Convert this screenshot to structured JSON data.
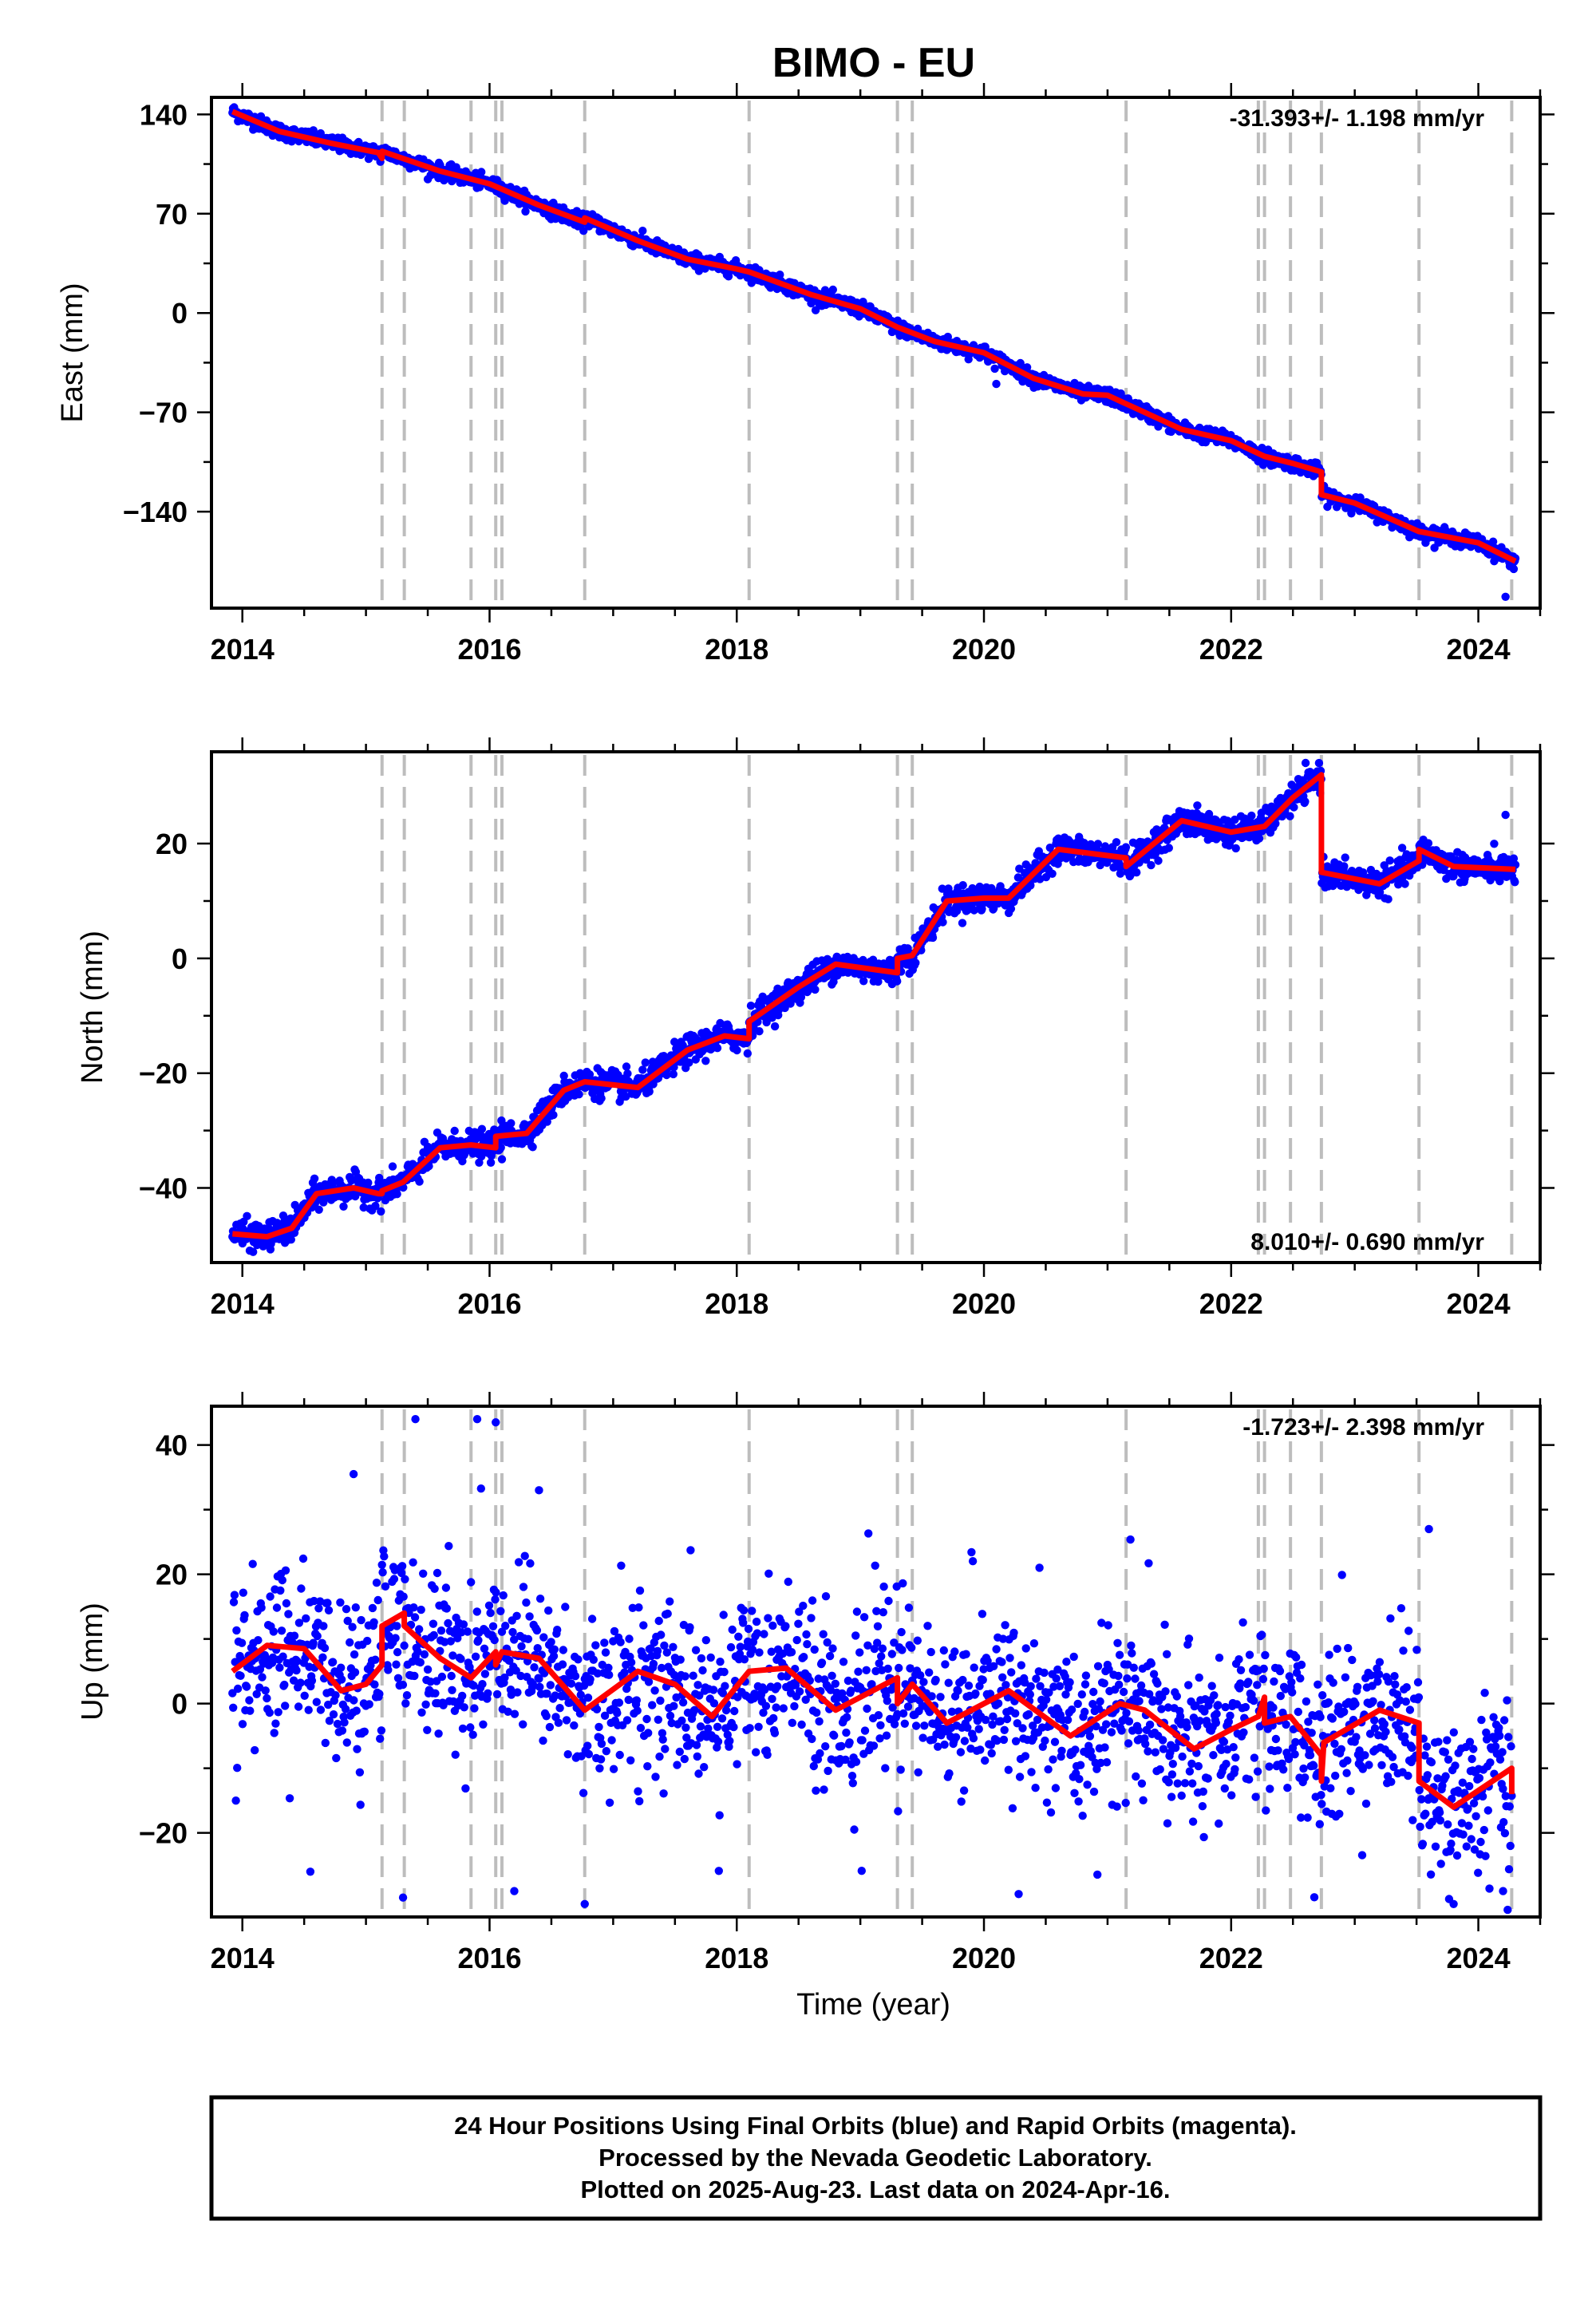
{
  "title": "BIMO - EU",
  "footer": {
    "line1": "24 Hour Positions Using Final Orbits (blue) and Rapid Orbits (magenta).",
    "line2": "Processed by the Nevada Geodetic Laboratory.",
    "line3": "Plotted on 2025-Aug-23. Last data on 2024-Apr-16."
  },
  "colors": {
    "final_orbit_points": "#0000ff",
    "model_fit": "#ff0000",
    "event_lines": "#bdbdbd"
  },
  "chart_data": [
    {
      "type": "scatter",
      "name": "east",
      "ylabel": "East (mm)",
      "xlabel": "",
      "xlim": [
        2013.75,
        2024.5
      ],
      "ylim": [
        -208,
        152
      ],
      "xticks": [
        2014,
        2016,
        2018,
        2020,
        2022,
        2024
      ],
      "yticks": [
        140,
        70,
        0,
        -70,
        -140
      ],
      "ytick_labels": [
        "140",
        "70",
        "0",
        "−70",
        "−140"
      ],
      "rate_label": "-31.393+/- 1.198 mm/yr",
      "rate_placement": "top-right",
      "grid": false,
      "events": [
        2015.13,
        2015.31,
        2015.85,
        2016.05,
        2016.1,
        2016.77,
        2018.1,
        2019.3,
        2019.42,
        2021.15,
        2022.22,
        2022.27,
        2022.48,
        2022.73,
        2023.52,
        2024.27
      ],
      "model": [
        [
          2013.92,
          142
        ],
        [
          2014.3,
          128
        ],
        [
          2014.7,
          120
        ],
        [
          2015.1,
          113
        ],
        [
          2015.13,
          109
        ],
        [
          2015.13,
          114
        ],
        [
          2015.6,
          100
        ],
        [
          2016.0,
          91
        ],
        [
          2016.4,
          76
        ],
        [
          2016.77,
          64
        ],
        [
          2016.77,
          67
        ],
        [
          2017.2,
          51
        ],
        [
          2017.6,
          38
        ],
        [
          2018.0,
          31
        ],
        [
          2018.1,
          29
        ],
        [
          2018.6,
          13
        ],
        [
          2019.0,
          3
        ],
        [
          2019.3,
          -10
        ],
        [
          2019.6,
          -20
        ],
        [
          2020.0,
          -28
        ],
        [
          2020.4,
          -46
        ],
        [
          2020.8,
          -57
        ],
        [
          2021.0,
          -58
        ],
        [
          2021.15,
          -64
        ],
        [
          2021.6,
          -82
        ],
        [
          2022.0,
          -90
        ],
        [
          2022.27,
          -101
        ],
        [
          2022.5,
          -106
        ],
        [
          2022.73,
          -112
        ],
        [
          2022.73,
          -128
        ],
        [
          2023.0,
          -134
        ],
        [
          2023.52,
          -154
        ],
        [
          2024.0,
          -162
        ],
        [
          2024.3,
          -175
        ]
      ],
      "noise_sd": 2.5,
      "outliers": [
        [
          2024.22,
          -200
        ],
        [
          2019.7,
          -26
        ],
        [
          2020.1,
          -50
        ]
      ]
    },
    {
      "type": "scatter",
      "name": "north",
      "ylabel": "North (mm)",
      "xlabel": "",
      "xlim": [
        2013.75,
        2024.5
      ],
      "ylim": [
        -53,
        36
      ],
      "xticks": [
        2014,
        2016,
        2018,
        2020,
        2022,
        2024
      ],
      "yticks": [
        20,
        0,
        -20,
        -40
      ],
      "ytick_labels": [
        "20",
        "0",
        "−20",
        "−40"
      ],
      "rate_label": "8.010+/- 0.690 mm/yr",
      "rate_placement": "bottom-right",
      "grid": false,
      "events": [
        2015.13,
        2015.31,
        2015.85,
        2016.05,
        2016.1,
        2016.77,
        2018.1,
        2019.3,
        2019.42,
        2021.15,
        2022.22,
        2022.27,
        2022.48,
        2022.73,
        2023.52,
        2024.27
      ],
      "model": [
        [
          2013.92,
          -48
        ],
        [
          2014.2,
          -48.5
        ],
        [
          2014.4,
          -47
        ],
        [
          2014.6,
          -41
        ],
        [
          2014.9,
          -40
        ],
        [
          2015.1,
          -41
        ],
        [
          2015.13,
          -41
        ],
        [
          2015.13,
          -40.5
        ],
        [
          2015.3,
          -39
        ],
        [
          2015.6,
          -33
        ],
        [
          2015.85,
          -32.5
        ],
        [
          2016.05,
          -33
        ],
        [
          2016.05,
          -31
        ],
        [
          2016.3,
          -30.5
        ],
        [
          2016.6,
          -23
        ],
        [
          2016.77,
          -21.5
        ],
        [
          2017.2,
          -22.5
        ],
        [
          2017.6,
          -16
        ],
        [
          2017.9,
          -13.5
        ],
        [
          2018.1,
          -14
        ],
        [
          2018.1,
          -11
        ],
        [
          2018.5,
          -5
        ],
        [
          2018.8,
          -1
        ],
        [
          2019.3,
          -2.5
        ],
        [
          2019.3,
          0
        ],
        [
          2019.42,
          0.5
        ],
        [
          2019.7,
          10
        ],
        [
          2020.0,
          10.5
        ],
        [
          2020.2,
          10.5
        ],
        [
          2020.6,
          19
        ],
        [
          2021.15,
          17.5
        ],
        [
          2021.15,
          16
        ],
        [
          2021.6,
          24
        ],
        [
          2022.0,
          22
        ],
        [
          2022.27,
          23
        ],
        [
          2022.5,
          28
        ],
        [
          2022.73,
          32
        ],
        [
          2022.73,
          15
        ],
        [
          2023.2,
          13
        ],
        [
          2023.52,
          17
        ],
        [
          2023.52,
          19
        ],
        [
          2023.8,
          16
        ],
        [
          2024.3,
          15.5
        ]
      ],
      "noise_sd": 1.2,
      "outliers": [
        [
          2024.22,
          25
        ],
        [
          2016.1,
          -35
        ]
      ]
    },
    {
      "type": "scatter",
      "name": "up",
      "ylabel": "Up (mm)",
      "xlabel": "Time (year)",
      "xlim": [
        2013.75,
        2024.5
      ],
      "ylim": [
        -33,
        46
      ],
      "xticks": [
        2014,
        2016,
        2018,
        2020,
        2022,
        2024
      ],
      "yticks": [
        40,
        20,
        0,
        -20
      ],
      "ytick_labels": [
        "40",
        "20",
        "0",
        "−20"
      ],
      "rate_label": "-1.723+/- 2.398 mm/yr",
      "rate_placement": "top-right",
      "grid": false,
      "events": [
        2015.13,
        2015.31,
        2015.85,
        2016.05,
        2016.1,
        2016.77,
        2018.1,
        2019.3,
        2019.42,
        2021.15,
        2022.22,
        2022.27,
        2022.48,
        2022.73,
        2023.52,
        2024.27
      ],
      "model": [
        [
          2013.92,
          5
        ],
        [
          2014.2,
          9
        ],
        [
          2014.5,
          8.5
        ],
        [
          2014.8,
          2
        ],
        [
          2015.0,
          3
        ],
        [
          2015.13,
          6
        ],
        [
          2015.13,
          12
        ],
        [
          2015.31,
          14
        ],
        [
          2015.31,
          12
        ],
        [
          2015.6,
          7
        ],
        [
          2015.85,
          4
        ],
        [
          2016.05,
          8
        ],
        [
          2016.05,
          6
        ],
        [
          2016.1,
          8
        ],
        [
          2016.4,
          7
        ],
        [
          2016.77,
          -1
        ],
        [
          2017.2,
          5
        ],
        [
          2017.5,
          3
        ],
        [
          2017.8,
          -2
        ],
        [
          2018.1,
          5
        ],
        [
          2018.4,
          5.5
        ],
        [
          2018.8,
          -1
        ],
        [
          2019.2,
          3
        ],
        [
          2019.3,
          4
        ],
        [
          2019.3,
          0
        ],
        [
          2019.42,
          3
        ],
        [
          2019.7,
          -3
        ],
        [
          2020.2,
          2
        ],
        [
          2020.7,
          -5
        ],
        [
          2021.1,
          0
        ],
        [
          2021.3,
          -1
        ],
        [
          2021.7,
          -7
        ],
        [
          2022.0,
          -4
        ],
        [
          2022.22,
          -2
        ],
        [
          2022.27,
          1
        ],
        [
          2022.27,
          -3
        ],
        [
          2022.48,
          -2
        ],
        [
          2022.73,
          -8
        ],
        [
          2022.73,
          -12
        ],
        [
          2022.75,
          -6
        ],
        [
          2023.2,
          -1
        ],
        [
          2023.52,
          -3
        ],
        [
          2023.52,
          -12
        ],
        [
          2023.8,
          -16
        ],
        [
          2024.27,
          -10
        ],
        [
          2024.27,
          -14
        ]
      ],
      "noise_sd": 6.0,
      "outliers": [
        [
          2015.4,
          44
        ],
        [
          2015.9,
          44
        ],
        [
          2016.05,
          43.5
        ],
        [
          2014.9,
          35.5
        ],
        [
          2016.4,
          33
        ],
        [
          2015.3,
          -30
        ],
        [
          2016.77,
          -31
        ],
        [
          2016.2,
          -29
        ],
        [
          2014.55,
          -26
        ],
        [
          2023.6,
          27
        ],
        [
          2023.8,
          -31
        ],
        [
          2024.2,
          -29
        ]
      ]
    }
  ]
}
